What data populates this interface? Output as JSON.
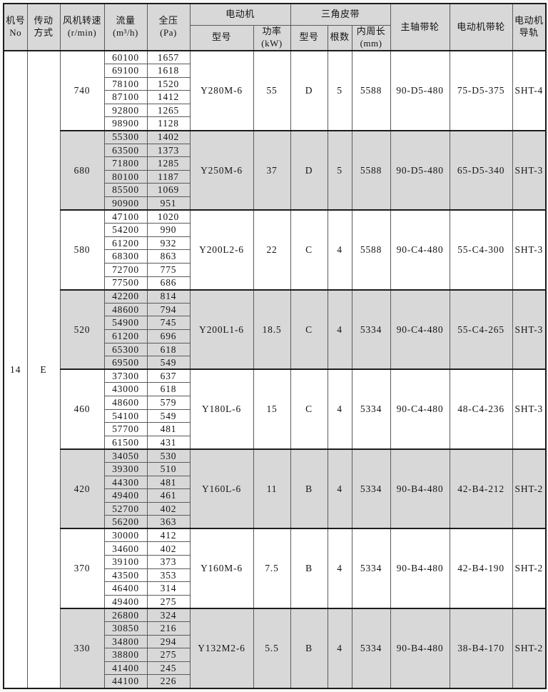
{
  "table": {
    "headers": {
      "machine_no": "机号\nNo",
      "drive_mode": "传动\n方式",
      "fan_speed": "风机转速\n(r/min)",
      "flow": "流量\n(m³/h)",
      "pressure": "全压\n(Pa)",
      "motor_group": "电动机",
      "motor_model": "型号",
      "motor_power": "功率\n(kW)",
      "belt_group": "三角皮带",
      "belt_model": "型号",
      "belt_count": "根数",
      "belt_length": "内周长\n(mm)",
      "main_pulley": "主轴带轮",
      "motor_pulley": "电动机带轮",
      "motor_rail": "电动机\n导轨"
    },
    "machine_no": "14",
    "drive_mode": "E",
    "groups": [
      {
        "speed": "740",
        "rows": [
          [
            "60100",
            "1657"
          ],
          [
            "69100",
            "1618"
          ],
          [
            "78100",
            "1520"
          ],
          [
            "87100",
            "1412"
          ],
          [
            "92800",
            "1265"
          ],
          [
            "98900",
            "1128"
          ]
        ],
        "motor_model": "Y280M-6",
        "motor_power": "55",
        "belt_model": "D",
        "belt_count": "5",
        "belt_length": "5588",
        "main_pulley": "90-D5-480",
        "motor_pulley": "75-D5-375",
        "motor_rail": "SHT-4",
        "shaded": false
      },
      {
        "speed": "680",
        "rows": [
          [
            "55300",
            "1402"
          ],
          [
            "63500",
            "1373"
          ],
          [
            "71800",
            "1285"
          ],
          [
            "80100",
            "1187"
          ],
          [
            "85500",
            "1069"
          ],
          [
            "90900",
            "951"
          ]
        ],
        "motor_model": "Y250M-6",
        "motor_power": "37",
        "belt_model": "D",
        "belt_count": "5",
        "belt_length": "5588",
        "main_pulley": "90-D5-480",
        "motor_pulley": "65-D5-340",
        "motor_rail": "SHT-3",
        "shaded": true
      },
      {
        "speed": "580",
        "rows": [
          [
            "47100",
            "1020"
          ],
          [
            "54200",
            "990"
          ],
          [
            "61200",
            "932"
          ],
          [
            "68300",
            "863"
          ],
          [
            "72700",
            "775"
          ],
          [
            "77500",
            "686"
          ]
        ],
        "motor_model": "Y200L2-6",
        "motor_power": "22",
        "belt_model": "C",
        "belt_count": "4",
        "belt_length": "5588",
        "main_pulley": "90-C4-480",
        "motor_pulley": "55-C4-300",
        "motor_rail": "SHT-3",
        "shaded": false
      },
      {
        "speed": "520",
        "rows": [
          [
            "42200",
            "814"
          ],
          [
            "48600",
            "794"
          ],
          [
            "54900",
            "745"
          ],
          [
            "61200",
            "696"
          ],
          [
            "65300",
            "618"
          ],
          [
            "69500",
            "549"
          ]
        ],
        "motor_model": "Y200L1-6",
        "motor_power": "18.5",
        "belt_model": "C",
        "belt_count": "4",
        "belt_length": "5334",
        "main_pulley": "90-C4-480",
        "motor_pulley": "55-C4-265",
        "motor_rail": "SHT-3",
        "shaded": true
      },
      {
        "speed": "460",
        "rows": [
          [
            "37300",
            "637"
          ],
          [
            "43000",
            "618"
          ],
          [
            "48600",
            "579"
          ],
          [
            "54100",
            "549"
          ],
          [
            "57700",
            "481"
          ],
          [
            "61500",
            "431"
          ]
        ],
        "motor_model": "Y180L-6",
        "motor_power": "15",
        "belt_model": "C",
        "belt_count": "4",
        "belt_length": "5334",
        "main_pulley": "90-C4-480",
        "motor_pulley": "48-C4-236",
        "motor_rail": "SHT-3",
        "shaded": false
      },
      {
        "speed": "420",
        "rows": [
          [
            "34050",
            "530"
          ],
          [
            "39300",
            "510"
          ],
          [
            "44300",
            "481"
          ],
          [
            "49400",
            "461"
          ],
          [
            "52700",
            "402"
          ],
          [
            "56200",
            "363"
          ]
        ],
        "motor_model": "Y160L-6",
        "motor_power": "11",
        "belt_model": "B",
        "belt_count": "4",
        "belt_length": "5334",
        "main_pulley": "90-B4-480",
        "motor_pulley": "42-B4-212",
        "motor_rail": "SHT-2",
        "shaded": true
      },
      {
        "speed": "370",
        "rows": [
          [
            "30000",
            "412"
          ],
          [
            "34600",
            "402"
          ],
          [
            "39100",
            "373"
          ],
          [
            "43500",
            "353"
          ],
          [
            "46400",
            "314"
          ],
          [
            "49400",
            "275"
          ]
        ],
        "motor_model": "Y160M-6",
        "motor_power": "7.5",
        "belt_model": "B",
        "belt_count": "4",
        "belt_length": "5334",
        "main_pulley": "90-B4-480",
        "motor_pulley": "42-B4-190",
        "motor_rail": "SHT-2",
        "shaded": false
      },
      {
        "speed": "330",
        "rows": [
          [
            "26800",
            "324"
          ],
          [
            "30850",
            "216"
          ],
          [
            "34800",
            "294"
          ],
          [
            "38800",
            "275"
          ],
          [
            "41400",
            "245"
          ],
          [
            "44100",
            "226"
          ]
        ],
        "motor_model": "Y132M2-6",
        "motor_power": "5.5",
        "belt_model": "B",
        "belt_count": "4",
        "belt_length": "5334",
        "main_pulley": "90-B4-480",
        "motor_pulley": "38-B4-170",
        "motor_rail": "SHT-2",
        "shaded": true
      }
    ]
  },
  "colors": {
    "shade": "#d8d8d8",
    "border_thin": "#5a5a5a",
    "border_thick": "#1c1c1c",
    "text": "#141414",
    "page_bg": "#f7f7f5"
  }
}
